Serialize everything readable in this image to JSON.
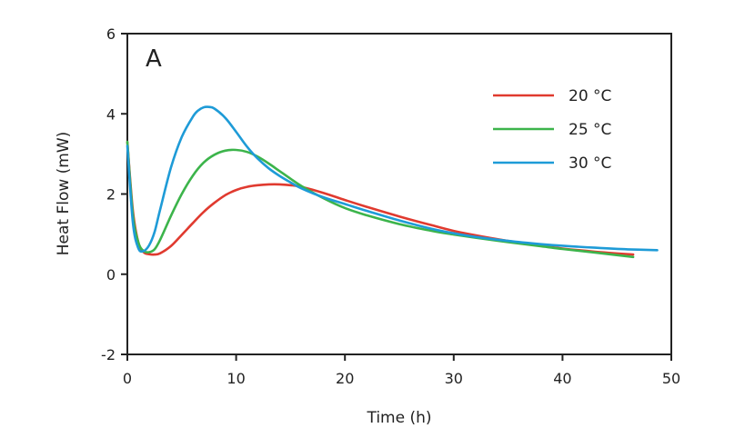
{
  "chart_data": {
    "type": "line",
    "panel_label": "A",
    "xlabel": "Time (h)",
    "ylabel": "Heat Flow (mW)",
    "xlim": [
      0,
      50
    ],
    "ylim": [
      -2,
      6
    ],
    "xticks": [
      0,
      10,
      20,
      30,
      40,
      50
    ],
    "yticks": [
      -2,
      0,
      2,
      4,
      6
    ],
    "grid": false,
    "legend_position": "top-right",
    "series": [
      {
        "name": "20 °C",
        "color": "#e03a2f",
        "x": [
          0,
          0.5,
          1,
          1.5,
          2,
          2.5,
          3,
          4,
          5,
          6,
          7,
          8,
          9,
          10,
          11,
          12,
          13,
          14,
          15,
          16,
          18,
          20,
          22,
          25,
          28,
          30,
          32,
          35,
          38,
          40,
          43,
          46.5
        ],
        "y": [
          3.3,
          1.6,
          0.8,
          0.55,
          0.5,
          0.49,
          0.52,
          0.7,
          0.98,
          1.27,
          1.55,
          1.78,
          1.97,
          2.1,
          2.18,
          2.22,
          2.24,
          2.24,
          2.22,
          2.18,
          2.03,
          1.85,
          1.68,
          1.44,
          1.22,
          1.08,
          0.97,
          0.83,
          0.71,
          0.64,
          0.56,
          0.49
        ]
      },
      {
        "name": "25 °C",
        "color": "#3cb44b",
        "x": [
          0,
          0.5,
          1,
          1.5,
          2,
          2.5,
          3,
          4,
          5,
          6,
          7,
          8,
          9,
          10,
          11,
          12,
          13,
          14,
          15,
          16,
          18,
          20,
          22,
          25,
          28,
          30,
          32,
          35,
          38,
          40,
          43,
          46.5
        ],
        "y": [
          3.3,
          1.5,
          0.8,
          0.58,
          0.55,
          0.62,
          0.85,
          1.45,
          2.0,
          2.45,
          2.78,
          2.98,
          3.08,
          3.1,
          3.05,
          2.93,
          2.76,
          2.57,
          2.38,
          2.2,
          1.9,
          1.65,
          1.47,
          1.25,
          1.08,
          0.99,
          0.91,
          0.8,
          0.7,
          0.63,
          0.54,
          0.43
        ]
      },
      {
        "name": "30 °C",
        "color": "#1e9bd7",
        "x": [
          0,
          0.5,
          1,
          1.5,
          2,
          2.5,
          3,
          4,
          5,
          6,
          6.5,
          7,
          7.5,
          8,
          9,
          10,
          11,
          12,
          13,
          14,
          15,
          16,
          18,
          20,
          22,
          25,
          28,
          30,
          32,
          35,
          38,
          40,
          43,
          46,
          48.7
        ],
        "y": [
          3.2,
          1.3,
          0.65,
          0.58,
          0.72,
          1.05,
          1.6,
          2.65,
          3.42,
          3.92,
          4.08,
          4.16,
          4.17,
          4.13,
          3.9,
          3.55,
          3.18,
          2.88,
          2.64,
          2.45,
          2.29,
          2.14,
          1.92,
          1.75,
          1.58,
          1.34,
          1.13,
          1.02,
          0.93,
          0.83,
          0.75,
          0.71,
          0.66,
          0.62,
          0.6
        ]
      }
    ]
  }
}
